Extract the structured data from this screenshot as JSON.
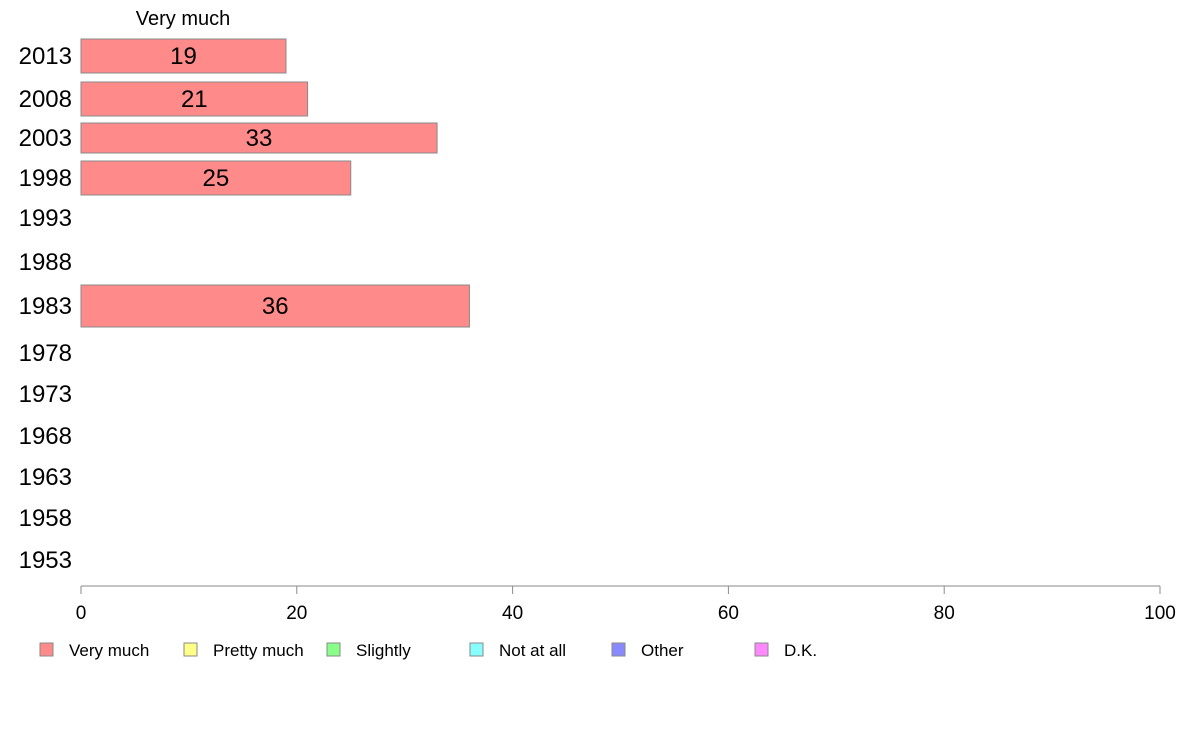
{
  "chart_data": {
    "type": "bar",
    "orientation": "horizontal",
    "series_title": "Very much",
    "categories": [
      "2013",
      "2008",
      "2003",
      "1998",
      "1993",
      "1988",
      "1983",
      "1978",
      "1973",
      "1968",
      "1963",
      "1958",
      "1953"
    ],
    "series": [
      {
        "name": "Very much",
        "color": "#ff8a8a",
        "values": [
          19,
          21,
          33,
          25,
          null,
          null,
          36,
          null,
          null,
          null,
          null,
          null,
          null
        ]
      }
    ],
    "data_labels": [
      "19",
      "21",
      "33",
      "25",
      "",
      "",
      "36",
      "",
      "",
      "",
      "",
      "",
      ""
    ],
    "xlim": [
      0,
      100
    ],
    "xticks": [
      0,
      20,
      40,
      60,
      80,
      100
    ],
    "grid": false,
    "legend_position": "bottom",
    "legend": [
      {
        "label": "Very much",
        "color": "#ff8a8a"
      },
      {
        "label": "Pretty much",
        "color": "#ffff88"
      },
      {
        "label": "Slightly",
        "color": "#88ff88"
      },
      {
        "label": "Not at all",
        "color": "#88ffff"
      },
      {
        "label": "Other",
        "color": "#8888ff"
      },
      {
        "label": "D.K.",
        "color": "#ff88ff"
      }
    ]
  }
}
